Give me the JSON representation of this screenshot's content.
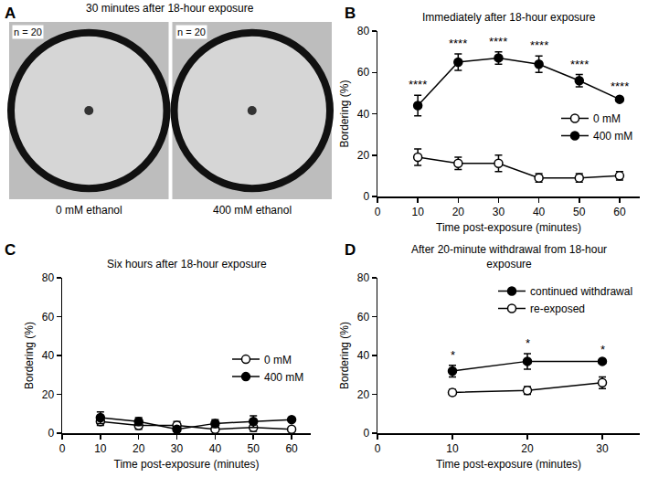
{
  "chart_data": [
    {
      "type": "image",
      "label": "A",
      "title": "30 minutes after 18-hour exposure",
      "images": [
        {
          "caption": "0 mM ethanol",
          "annotation": "n = 20"
        },
        {
          "caption": "400 mM ethanol",
          "annotation": "n = 20"
        }
      ]
    },
    {
      "type": "line",
      "label": "B",
      "title": "Immediately after 18-hour exposure",
      "x_label": "Time post-exposure (minutes)",
      "y_label": "Bordering (%)",
      "x": [
        10,
        20,
        30,
        40,
        50,
        60
      ],
      "series": [
        {
          "name": "0 mM",
          "color": "#000000",
          "marker": "open",
          "line_style": "solid",
          "values": [
            19,
            16,
            16,
            9,
            9,
            10
          ],
          "errors": [
            4,
            3,
            4,
            2,
            2,
            2
          ]
        },
        {
          "name": "400 mM",
          "color": "#000000",
          "marker": "filled",
          "line_style": "solid",
          "values": [
            44,
            65,
            67,
            64,
            56,
            47
          ],
          "errors": [
            5,
            4,
            3,
            4,
            3,
            1
          ]
        }
      ],
      "annotations": [
        {
          "x": 10,
          "text": "****"
        },
        {
          "x": 20,
          "text": "****"
        },
        {
          "x": 30,
          "text": "****"
        },
        {
          "x": 40,
          "text": "****"
        },
        {
          "x": 50,
          "text": "****"
        },
        {
          "x": 60,
          "text": "****"
        }
      ],
      "xlim": [
        0,
        65
      ],
      "xticks": [
        0,
        10,
        20,
        30,
        40,
        50,
        60
      ],
      "ylim": [
        0,
        80
      ],
      "yticks": [
        0,
        20,
        40,
        60,
        80
      ],
      "legend": "right",
      "grid": false
    },
    {
      "type": "line",
      "label": "C",
      "title": "Six hours after 18-hour exposure",
      "x_label": "Time post-exposure (minutes)",
      "y_label": "Bordering (%)",
      "x": [
        10,
        20,
        30,
        40,
        50,
        60
      ],
      "series": [
        {
          "name": "0 mM",
          "color": "#000000",
          "marker": "open",
          "line_style": "solid",
          "values": [
            6,
            4,
            4,
            2,
            3,
            2
          ],
          "errors": [
            2,
            2,
            2,
            1,
            2,
            1
          ]
        },
        {
          "name": "400 mM",
          "color": "#000000",
          "marker": "filled",
          "line_style": "solid",
          "values": [
            8,
            6,
            2,
            5,
            6,
            7
          ],
          "errors": [
            3,
            2,
            1,
            2,
            3,
            1
          ]
        }
      ],
      "xlim": [
        0,
        65
      ],
      "xticks": [
        0,
        10,
        20,
        30,
        40,
        50,
        60
      ],
      "ylim": [
        0,
        80
      ],
      "yticks": [
        0,
        20,
        40,
        60,
        80
      ],
      "legend": "right",
      "grid": false
    },
    {
      "type": "line",
      "label": "D",
      "title": "After 20-minute withdrawal from 18-hour exposure",
      "x_label": "Time post-exposure (minutes)",
      "y_label": "Bordering (%)",
      "x": [
        10,
        20,
        30
      ],
      "series": [
        {
          "name": "continued withdrawal",
          "color": "#000000",
          "marker": "filled",
          "line_style": "solid",
          "values": [
            32,
            37,
            37
          ],
          "errors": [
            3,
            4,
            0.5
          ]
        },
        {
          "name": "re-exposed",
          "color": "#000000",
          "marker": "open",
          "line_style": "solid",
          "values": [
            21,
            22,
            26
          ],
          "errors": [
            1.5,
            2,
            3
          ]
        }
      ],
      "annotations": [
        {
          "x": 10,
          "text": "*"
        },
        {
          "x": 20,
          "text": "*"
        },
        {
          "x": 30,
          "text": "*"
        }
      ],
      "xlim": [
        0,
        35
      ],
      "xticks": [
        0,
        10,
        20,
        30
      ],
      "ylim": [
        0,
        80
      ],
      "yticks": [
        0,
        20,
        40,
        60,
        80
      ],
      "legend": "upper right",
      "grid": false
    }
  ]
}
